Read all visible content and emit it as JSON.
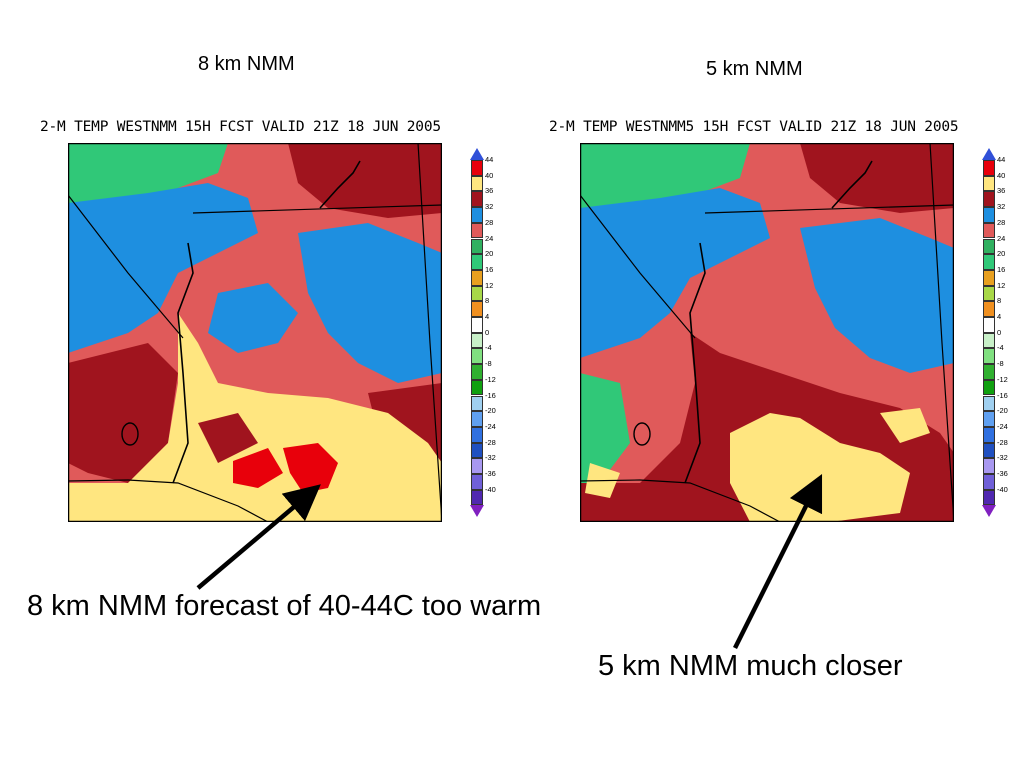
{
  "maps": [
    {
      "heading": "8 km NMM",
      "title": "2-M TEMP WESTNMM 15H FCST VALID 21Z 18 JUN 2005"
    },
    {
      "heading": "5 km NMM",
      "title": "2-M TEMP WESTNMM5 15H FCST VALID 21Z 18 JUN 2005"
    }
  ],
  "legend": {
    "labels": [
      "44",
      "40",
      "36",
      "32",
      "28",
      "24",
      "20",
      "16",
      "12",
      "8",
      "4",
      "0",
      "-4",
      "-8",
      "-12",
      "-16",
      "-20",
      "-24",
      "-28",
      "-32",
      "-36",
      "-40"
    ],
    "colors": [
      "#e8000b",
      "#ffe680",
      "#a0141e",
      "#1e8fe0",
      "#e05a5a",
      "#30b060",
      "#30c878",
      "#e8a020",
      "#a8d848",
      "#f09020",
      "#ffffff",
      "#c8f0c8",
      "#80e080",
      "#30b030",
      "#10a010",
      "#a0d0f0",
      "#60a0f0",
      "#3070e0",
      "#2050c0",
      "#a898f0",
      "#7060d8",
      "#5028b0"
    ],
    "cap_top_color": "#3050d8",
    "cap_bottom_color": "#8020c0"
  },
  "callouts": {
    "left": "8 km NMM forecast of 40-44C too warm",
    "right": "5 km NMM much closer"
  }
}
